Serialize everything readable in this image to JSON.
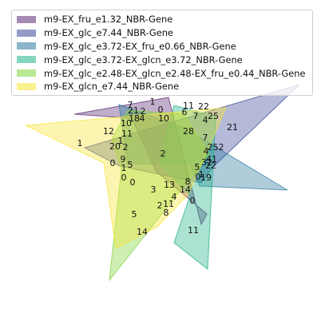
{
  "sets": [
    {
      "name": "m9-EX_fru_e1.32_NBR-Gene",
      "color": "#5b2a74"
    },
    {
      "name": "m9-EX_glc_e7.44_NBR-Gene",
      "color": "#3b4a98"
    },
    {
      "name": "m9-EX_glc_e3.72-EX_fru_e0.66_NBR-Gene",
      "color": "#2c7aa0"
    },
    {
      "name": "m9-EX_glc_e3.72-EX_glcn_e3.72_NBR-Gene",
      "color": "#22b38a"
    },
    {
      "name": "m9-EX_glc_e2.48-EX_glcn_e2.48-EX_fru_e0.44_NBR-Gene",
      "color": "#7fd63a"
    },
    {
      "name": "m9-EX_glcn_e7.44_NBR-Gene",
      "color": "#f7e635"
    }
  ],
  "counts": [
    "7",
    "1",
    "21",
    "2",
    "0",
    "11",
    "22",
    "18",
    "4",
    "10",
    "6",
    "7",
    "4",
    "25",
    "21",
    "12",
    "10",
    "28",
    "1",
    "11",
    "7",
    "1",
    "20",
    "2",
    "252",
    "2",
    "4",
    "9",
    "41",
    "1",
    "5",
    "0",
    "0",
    "32",
    "5",
    "0",
    "22",
    "1",
    "0",
    "19",
    "3",
    "13",
    "8",
    "14",
    "4",
    "2",
    "11",
    "0",
    "8",
    "5",
    "14",
    "11"
  ]
}
